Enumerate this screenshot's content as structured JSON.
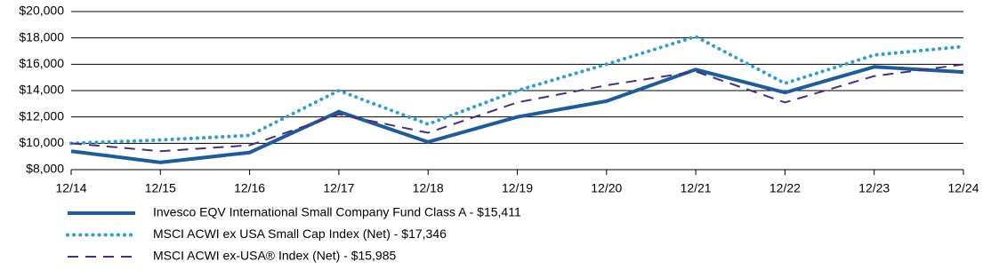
{
  "chart_data": {
    "type": "line",
    "categories": [
      "12/14",
      "12/15",
      "12/16",
      "12/17",
      "12/18",
      "12/19",
      "12/20",
      "12/21",
      "12/22",
      "12/23",
      "12/24"
    ],
    "ylim": [
      8000,
      20000
    ],
    "yticks": [
      {
        "value": 8000,
        "label": "$8,000"
      },
      {
        "value": 10000,
        "label": "$10,000"
      },
      {
        "value": 12000,
        "label": "$12,000"
      },
      {
        "value": 14000,
        "label": "$14,000"
      },
      {
        "value": 16000,
        "label": "$16,000"
      },
      {
        "value": 18000,
        "label": "$18,000"
      },
      {
        "value": 20000,
        "label": "$20,000"
      }
    ],
    "grid": true,
    "legend": "bottom-left",
    "series": [
      {
        "name": "Invesco EQV International Small Company Fund Class A - $15,411",
        "color": "#1b5c9e",
        "style": "solid",
        "values": [
          9400,
          8550,
          9300,
          12400,
          10100,
          12000,
          13200,
          15600,
          13850,
          15800,
          15411
        ]
      },
      {
        "name": "MSCI ACWI ex USA Small Cap Index (Net) - $17,346",
        "color": "#2a9fd6",
        "style": "dotted",
        "values": [
          10000,
          10250,
          10600,
          14000,
          11450,
          14000,
          16000,
          18100,
          14550,
          16700,
          17346
        ]
      },
      {
        "name": "MSCI ACWI ex-USA® Index (Net) - $15,985",
        "color": "#4b2e83",
        "style": "dashed",
        "values": [
          10000,
          9400,
          9850,
          12200,
          10800,
          13100,
          14400,
          15450,
          13100,
          15100,
          15985
        ]
      }
    ]
  }
}
